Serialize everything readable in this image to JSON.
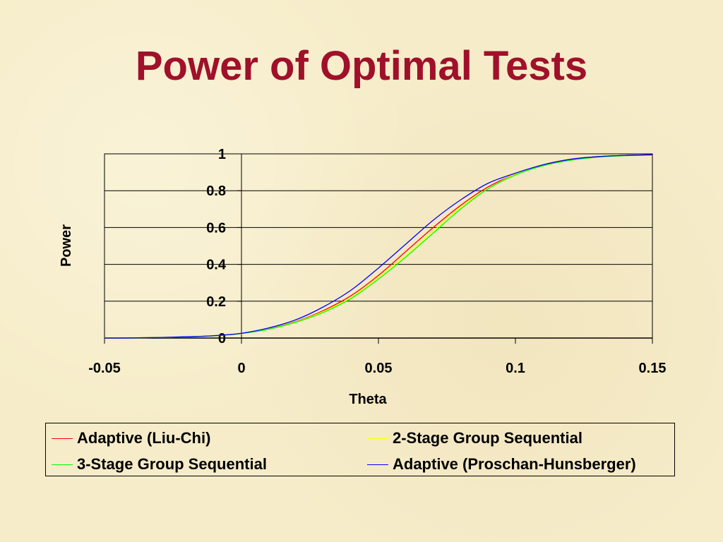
{
  "slide": {
    "title": "Power of Optimal Tests"
  },
  "chart_data": {
    "type": "line",
    "xlabel": "Theta",
    "ylabel": "Power",
    "xlim": [
      -0.05,
      0.15
    ],
    "ylim": [
      0,
      1
    ],
    "x_ticks": [
      "-0.05",
      "0",
      "0.05",
      "0.1",
      "0.15"
    ],
    "y_ticks": [
      "0",
      "0.2",
      "0.4",
      "0.6",
      "0.8",
      "1"
    ],
    "grid": "horizontal",
    "legend_position": "bottom",
    "x": [
      -0.05,
      -0.04,
      -0.03,
      -0.02,
      -0.01,
      0,
      0.01,
      0.02,
      0.03,
      0.04,
      0.05,
      0.06,
      0.07,
      0.08,
      0.09,
      0.1,
      0.11,
      0.12,
      0.13,
      0.14,
      0.15
    ],
    "series": [
      {
        "name": "Adaptive (Liu-Chi)",
        "color": "#ff0000",
        "values": [
          0.0,
          0.001,
          0.003,
          0.006,
          0.012,
          0.025,
          0.05,
          0.09,
          0.15,
          0.23,
          0.34,
          0.47,
          0.6,
          0.72,
          0.82,
          0.89,
          0.94,
          0.97,
          0.985,
          0.992,
          0.995
        ]
      },
      {
        "name": "2-Stage Group Sequential",
        "color": "#ffff00",
        "values": [
          0.0,
          0.001,
          0.003,
          0.006,
          0.012,
          0.025,
          0.049,
          0.088,
          0.145,
          0.22,
          0.33,
          0.45,
          0.58,
          0.71,
          0.81,
          0.89,
          0.935,
          0.965,
          0.982,
          0.99,
          0.994
        ]
      },
      {
        "name": "3-Stage Group Sequential",
        "color": "#00ff00",
        "values": [
          0.0,
          0.001,
          0.003,
          0.006,
          0.012,
          0.025,
          0.048,
          0.086,
          0.14,
          0.215,
          0.32,
          0.44,
          0.57,
          0.7,
          0.81,
          0.885,
          0.935,
          0.965,
          0.982,
          0.99,
          0.994
        ]
      },
      {
        "name": "Adaptive (Proschan-Hunsberger)",
        "color": "#0000ff",
        "values": [
          0.0,
          0.001,
          0.003,
          0.007,
          0.013,
          0.026,
          0.055,
          0.1,
          0.17,
          0.26,
          0.38,
          0.51,
          0.64,
          0.75,
          0.84,
          0.895,
          0.94,
          0.97,
          0.985,
          0.992,
          0.995
        ]
      }
    ]
  }
}
